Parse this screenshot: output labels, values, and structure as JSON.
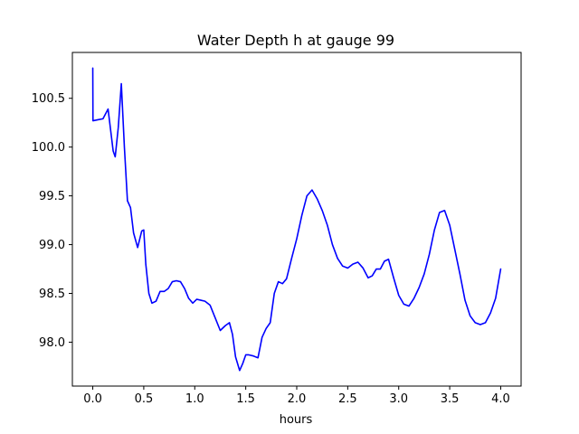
{
  "chart_data": {
    "type": "line",
    "title": "Water Depth h at gauge 99",
    "xlabel": "hours",
    "ylabel": "",
    "xlim": [
      -0.2,
      4.2
    ],
    "ylim": [
      97.55,
      100.97
    ],
    "x_ticks": [
      0.0,
      0.5,
      1.0,
      1.5,
      2.0,
      2.5,
      3.0,
      3.5,
      4.0
    ],
    "x_tick_labels": [
      "0.0",
      "0.5",
      "1.0",
      "1.5",
      "2.0",
      "2.5",
      "3.0",
      "3.5",
      "4.0"
    ],
    "y_ticks": [
      98.0,
      98.5,
      99.0,
      99.5,
      100.0,
      100.5
    ],
    "y_tick_labels": [
      "98.0",
      "98.5",
      "99.0",
      "99.5",
      "100.0",
      "100.5"
    ],
    "grid": false,
    "legend": "none",
    "colors": {
      "line": "#0000ff",
      "axes": "#000000",
      "background": "#ffffff"
    },
    "series": [
      {
        "x": [
          0.0,
          0.0,
          0.002,
          0.05,
          0.1,
          0.15,
          0.2,
          0.22,
          0.25,
          0.28,
          0.31,
          0.34,
          0.37,
          0.4,
          0.44,
          0.48,
          0.5,
          0.52,
          0.55,
          0.58,
          0.62,
          0.66,
          0.7,
          0.74,
          0.78,
          0.82,
          0.86,
          0.9,
          0.94,
          0.98,
          1.02,
          1.06,
          1.1,
          1.15,
          1.2,
          1.25,
          1.3,
          1.34,
          1.37,
          1.4,
          1.44,
          1.47,
          1.5,
          1.53,
          1.57,
          1.62,
          1.66,
          1.7,
          1.74,
          1.78,
          1.82,
          1.86,
          1.9,
          1.95,
          2.0,
          2.05,
          2.1,
          2.15,
          2.2,
          2.25,
          2.3,
          2.35,
          2.4,
          2.45,
          2.5,
          2.55,
          2.6,
          2.65,
          2.7,
          2.74,
          2.78,
          2.82,
          2.86,
          2.9,
          2.95,
          3.0,
          3.05,
          3.1,
          3.15,
          3.2,
          3.25,
          3.3,
          3.35,
          3.4,
          3.45,
          3.5,
          3.55,
          3.6,
          3.65,
          3.7,
          3.75,
          3.8,
          3.85,
          3.9,
          3.95,
          4.0
        ],
        "y": [
          100.81,
          100.81,
          100.27,
          100.28,
          100.29,
          100.39,
          99.96,
          99.9,
          100.2,
          100.65,
          100.0,
          99.45,
          99.38,
          99.12,
          98.97,
          99.14,
          99.15,
          98.8,
          98.5,
          98.4,
          98.42,
          98.52,
          98.52,
          98.55,
          98.62,
          98.63,
          98.62,
          98.55,
          98.45,
          98.4,
          98.44,
          98.43,
          98.42,
          98.38,
          98.25,
          98.12,
          98.17,
          98.2,
          98.08,
          97.85,
          97.71,
          97.78,
          97.87,
          97.87,
          97.86,
          97.84,
          98.05,
          98.14,
          98.2,
          98.5,
          98.62,
          98.6,
          98.65,
          98.86,
          99.06,
          99.3,
          99.5,
          99.56,
          99.47,
          99.35,
          99.2,
          99.0,
          98.86,
          98.78,
          98.76,
          98.8,
          98.82,
          98.76,
          98.66,
          98.68,
          98.75,
          98.75,
          98.83,
          98.85,
          98.66,
          98.48,
          98.39,
          98.37,
          98.45,
          98.56,
          98.7,
          98.9,
          99.15,
          99.33,
          99.35,
          99.2,
          98.95,
          98.7,
          98.43,
          98.27,
          98.2,
          98.18,
          98.2,
          98.3,
          98.45,
          98.75
        ]
      }
    ]
  }
}
